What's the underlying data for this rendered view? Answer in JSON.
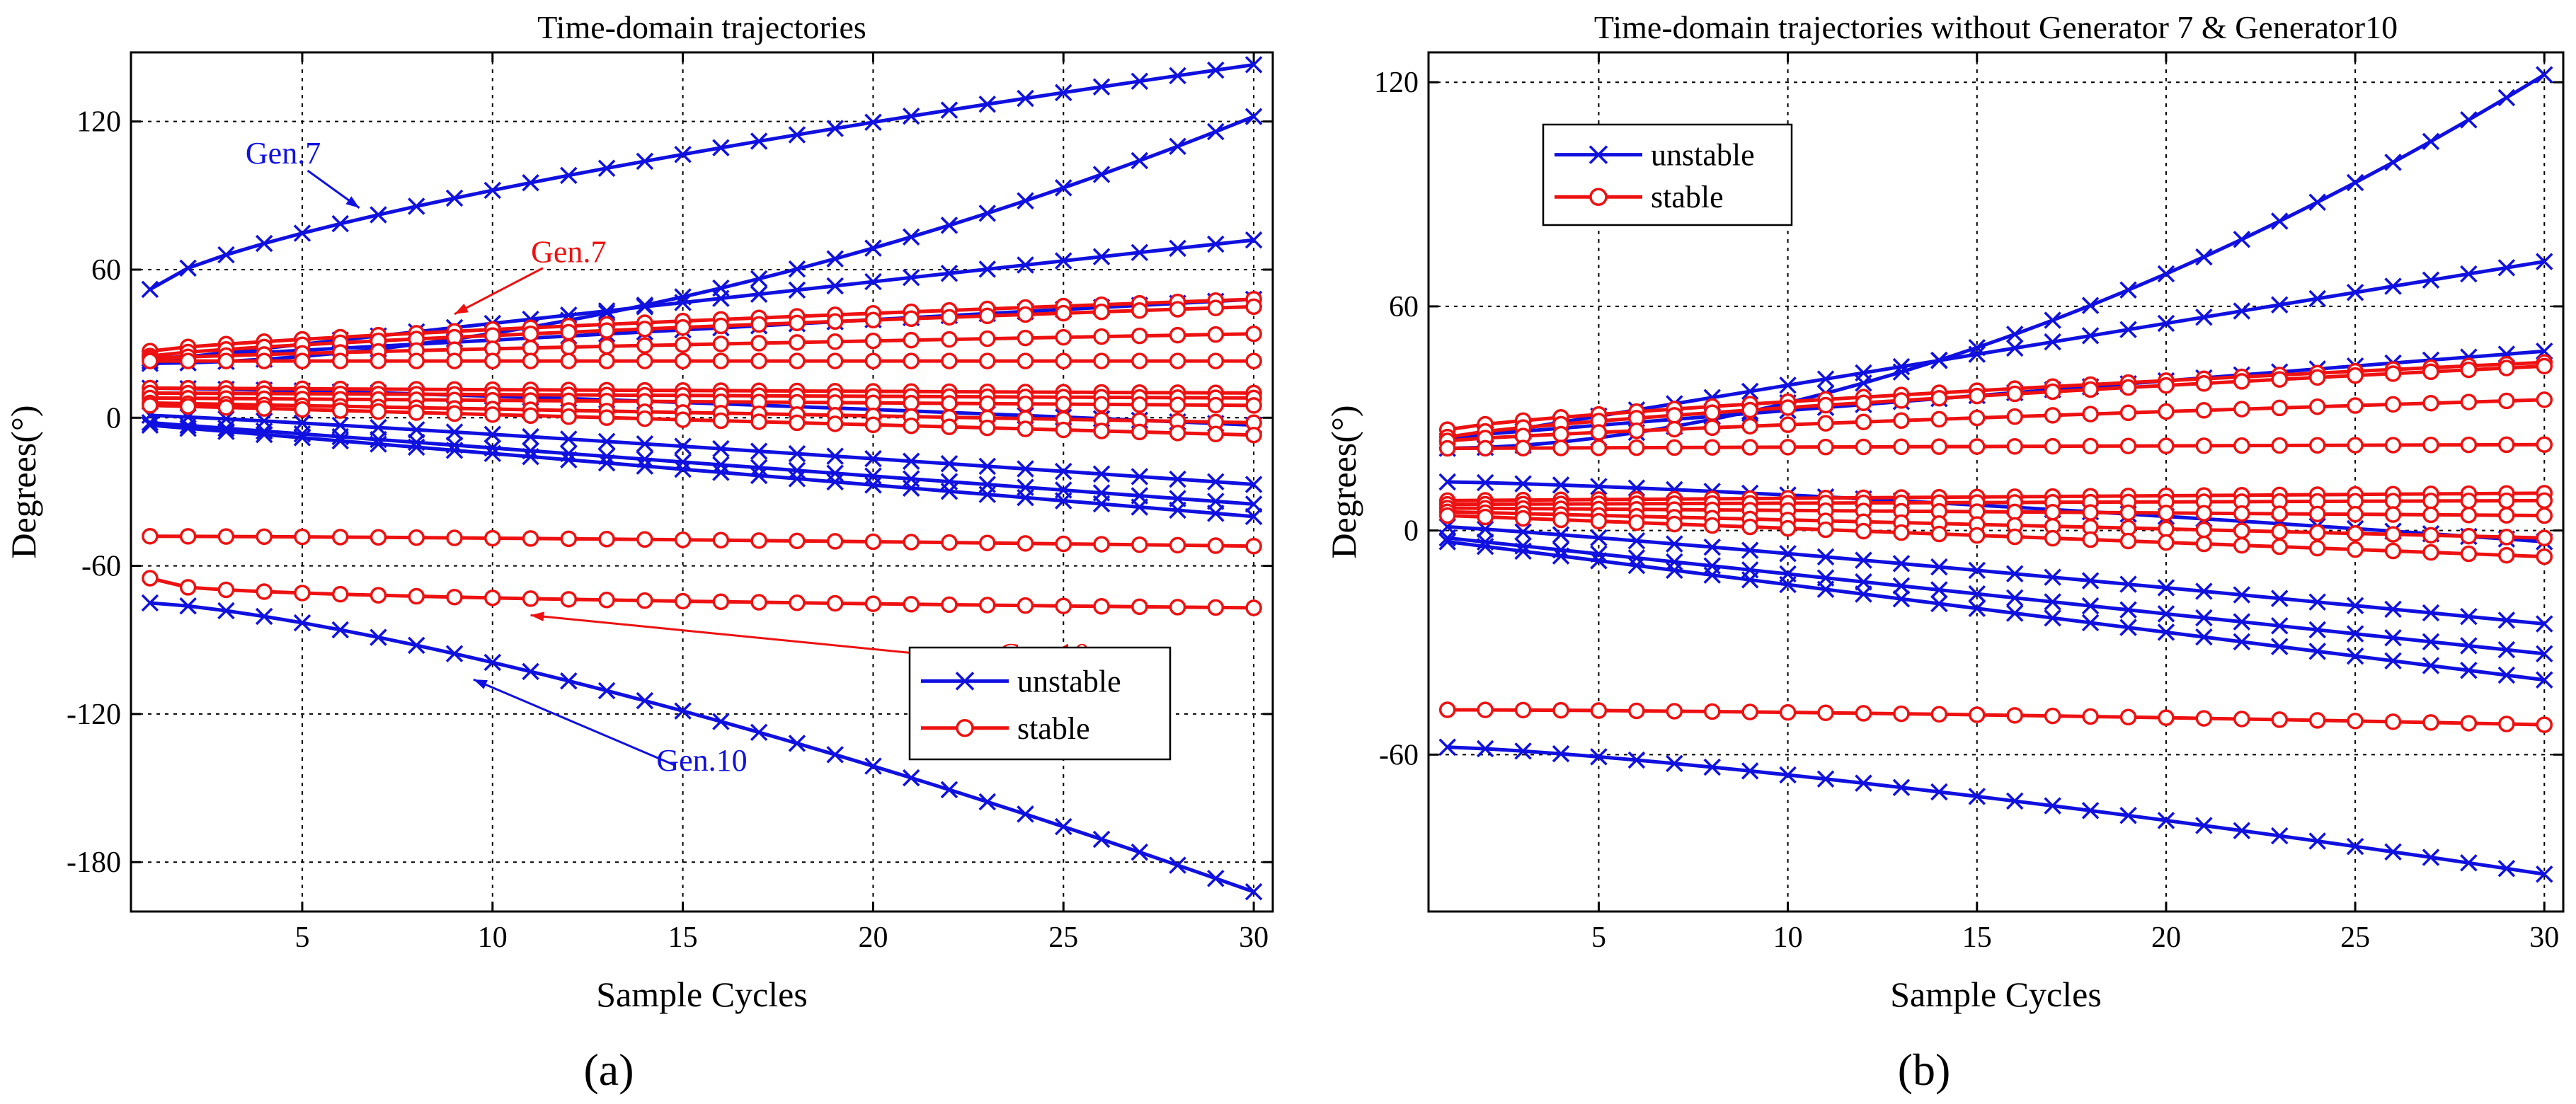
{
  "colors": {
    "unstable": "#1010e0",
    "stable": "#ee1111"
  },
  "chart_data": [
    {
      "type": "line",
      "label": "(a)",
      "title": "Time-domain trajectories",
      "xlabel": "Sample Cycles",
      "ylabel": "Degrees(°)",
      "xlim": [
        0.5,
        30.5
      ],
      "ylim": [
        -200,
        148
      ],
      "xticks": [
        5,
        10,
        15,
        20,
        25,
        30
      ],
      "yticks": [
        -180,
        -120,
        -60,
        0,
        60,
        120
      ],
      "grid": true,
      "legend": {
        "position": "bottom-right",
        "entries": [
          {
            "label": "unstable",
            "class": "unstable"
          },
          {
            "label": "stable",
            "class": "stable"
          }
        ]
      },
      "annotations": [
        {
          "text": "Gen.7",
          "class": "unstable",
          "at": [
            4.5,
            103
          ],
          "target": [
            6.5,
            85
          ]
        },
        {
          "text": "Gen.7",
          "class": "stable",
          "at": [
            12,
            63
          ],
          "target": [
            9,
            42
          ]
        },
        {
          "text": "Gen.10",
          "class": "stable",
          "at": [
            24.5,
            -100
          ],
          "target": [
            11,
            -80
          ]
        },
        {
          "text": "Gen.10",
          "class": "unstable",
          "at": [
            15.5,
            -143
          ],
          "target": [
            9.5,
            -106
          ]
        }
      ],
      "series": [
        {
          "class": "unstable",
          "start": 52,
          "end": 143,
          "curve": 0.7
        },
        {
          "class": "unstable",
          "start": 22,
          "end": 122,
          "curve": 1.8
        },
        {
          "class": "unstable",
          "start": 23,
          "end": 72,
          "curve": 1.0
        },
        {
          "class": "unstable",
          "start": 24,
          "end": 48,
          "curve": 1.0
        },
        {
          "class": "unstable",
          "start": 12,
          "end": -3,
          "curve": 1.3
        },
        {
          "class": "unstable",
          "start": 1,
          "end": -27,
          "curve": 1.1
        },
        {
          "class": "unstable",
          "start": -2,
          "end": -35,
          "curve": 1.0
        },
        {
          "class": "unstable",
          "start": -3,
          "end": -40,
          "curve": 1.0
        },
        {
          "class": "unstable",
          "start": -75,
          "end": -192,
          "curve": 1.35
        },
        {
          "class": "stable",
          "start": 27,
          "end": 48,
          "curve": 0.75
        },
        {
          "class": "stable",
          "start": 25,
          "end": 45,
          "curve": 0.75
        },
        {
          "class": "stable",
          "start": 24,
          "end": 34,
          "curve": 0.8
        },
        {
          "class": "stable",
          "start": 23,
          "end": 23,
          "curve": 1.0
        },
        {
          "class": "stable",
          "start": 12,
          "end": 10,
          "curve": 1.0
        },
        {
          "class": "stable",
          "start": 10,
          "end": 8,
          "curve": 1.0
        },
        {
          "class": "stable",
          "start": 8,
          "end": 5,
          "curve": 1.0
        },
        {
          "class": "stable",
          "start": 6,
          "end": -2,
          "curve": 1.0
        },
        {
          "class": "stable",
          "start": 5,
          "end": -7,
          "curve": 1.0
        },
        {
          "class": "stable",
          "start": -48,
          "end": -52,
          "curve": 1.4
        },
        {
          "class": "stable",
          "start": -65,
          "end": -77,
          "curve": 0.35
        }
      ]
    },
    {
      "type": "line",
      "label": "(b)",
      "title": "Time-domain trajectories without Generator 7 & Generator10",
      "xlabel": "Sample Cycles",
      "ylabel": "Degrees(°)",
      "xlim": [
        0.5,
        30.5
      ],
      "ylim": [
        -102,
        128
      ],
      "xticks": [
        5,
        10,
        15,
        20,
        25,
        30
      ],
      "yticks": [
        -60,
        0,
        60,
        120
      ],
      "grid": true,
      "legend": {
        "position": "top-left",
        "entries": [
          {
            "label": "unstable",
            "class": "unstable"
          },
          {
            "label": "stable",
            "class": "stable"
          }
        ]
      },
      "annotations": [],
      "series": [
        {
          "class": "unstable",
          "start": 22,
          "end": 122,
          "curve": 1.8
        },
        {
          "class": "unstable",
          "start": 24,
          "end": 72,
          "curve": 1.0
        },
        {
          "class": "unstable",
          "start": 25,
          "end": 48,
          "curve": 1.0
        },
        {
          "class": "unstable",
          "start": 13,
          "end": -3,
          "curve": 1.3
        },
        {
          "class": "unstable",
          "start": 1,
          "end": -25,
          "curve": 1.1
        },
        {
          "class": "unstable",
          "start": -2,
          "end": -33,
          "curve": 1.0
        },
        {
          "class": "unstable",
          "start": -3,
          "end": -40,
          "curve": 1.0
        },
        {
          "class": "unstable",
          "start": -58,
          "end": -92,
          "curve": 1.3
        },
        {
          "class": "stable",
          "start": 27,
          "end": 45,
          "curve": 0.75
        },
        {
          "class": "stable",
          "start": 25,
          "end": 44,
          "curve": 0.75
        },
        {
          "class": "stable",
          "start": 24,
          "end": 35,
          "curve": 0.8
        },
        {
          "class": "stable",
          "start": 22,
          "end": 23,
          "curve": 1.0
        },
        {
          "class": "stable",
          "start": 8,
          "end": 10,
          "curve": 1.0
        },
        {
          "class": "stable",
          "start": 7,
          "end": 8,
          "curve": 1.0
        },
        {
          "class": "stable",
          "start": 6,
          "end": 4,
          "curve": 1.0
        },
        {
          "class": "stable",
          "start": 5,
          "end": -2,
          "curve": 1.0
        },
        {
          "class": "stable",
          "start": 4,
          "end": -7,
          "curve": 1.0
        },
        {
          "class": "stable",
          "start": -48,
          "end": -52,
          "curve": 1.5
        }
      ]
    }
  ]
}
